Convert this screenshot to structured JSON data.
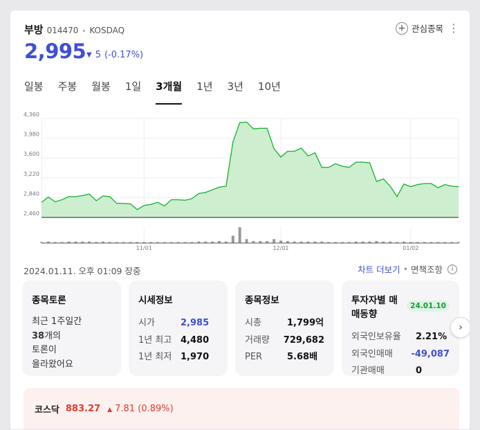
{
  "stock": {
    "name": "부방",
    "code": "014470",
    "separator": "•",
    "market": "KOSDAQ",
    "price": "2,995",
    "change_arrow": "▼",
    "change": "5",
    "change_pct": "(-0.17%)",
    "fav_label": "관심종목",
    "fav_icon": "plus-icon",
    "more_icon": "more-vertical-icon"
  },
  "tabs": [
    "일봉",
    "주봉",
    "월봉",
    "1일",
    "3개월",
    "1년",
    "3년",
    "10년"
  ],
  "active_tab": "3개월",
  "chart_data": {
    "type": "area",
    "color": "#22b43a",
    "fill": "#cdeecf",
    "ylim": [
      2460,
      4360
    ],
    "yticks": [
      "4,360",
      "3,980",
      "3,600",
      "3,220",
      "2,840",
      "2,460"
    ],
    "xticks": [
      {
        "label": "11/01",
        "index": 15
      },
      {
        "label": "12/01",
        "index": 35
      },
      {
        "label": "01/02",
        "index": 54
      }
    ],
    "values": [
      2750,
      2850,
      2760,
      2800,
      2860,
      2860,
      2880,
      2910,
      2780,
      2870,
      2860,
      2730,
      2730,
      2720,
      2610,
      2690,
      2710,
      2750,
      2680,
      2800,
      2800,
      2790,
      2820,
      2920,
      2940,
      2990,
      3040,
      3060,
      3910,
      4280,
      4290,
      4160,
      4170,
      4170,
      3780,
      3620,
      3730,
      3730,
      3790,
      3640,
      3700,
      3420,
      3420,
      3490,
      3440,
      3420,
      3520,
      3520,
      3510,
      3150,
      3200,
      3060,
      2860,
      3100,
      3050,
      3090,
      3110,
      3110,
      3030,
      3090,
      3060,
      3050
    ],
    "volume": [
      2,
      3,
      2,
      2,
      3,
      3,
      3,
      3,
      2,
      3,
      2,
      2,
      2,
      2,
      2,
      2,
      2,
      2,
      2,
      2,
      2,
      2,
      2,
      3,
      3,
      3,
      4,
      3,
      15,
      32,
      8,
      4,
      4,
      4,
      8,
      5,
      4,
      3,
      3,
      3,
      3,
      3,
      2,
      2,
      2,
      2,
      3,
      3,
      3,
      4,
      3,
      3,
      2,
      3,
      2,
      2,
      2,
      2,
      2,
      2,
      2,
      2
    ]
  },
  "status": {
    "datetime": "2024.01.11. 오후 01:09 장중",
    "chart_more": "차트 더보기",
    "separator": "•",
    "disclaimer": "면책조항",
    "info_icon": "info-icon"
  },
  "boxes": {
    "discussion": {
      "title": "종목토론",
      "lines": [
        "최근 1주일간",
        "38",
        "개의",
        "토론이",
        "올라왔어요"
      ]
    },
    "market_info": {
      "title": "시세정보",
      "rows": [
        {
          "k": "시가",
          "v": "2,985"
        },
        {
          "k": "1년 최고",
          "v": "4,480"
        },
        {
          "k": "1년 최저",
          "v": "1,970"
        }
      ]
    },
    "stock_info": {
      "title": "종목정보",
      "rows": [
        {
          "k": "시총",
          "v": "1,799억"
        },
        {
          "k": "거래량",
          "v": "729,682"
        },
        {
          "k": "PER",
          "v": "5.68배"
        }
      ]
    },
    "investor": {
      "title": "투자자별 매매동향",
      "badge": "24.01.10",
      "rows": [
        {
          "k": "외국인보유율",
          "v": "2.21%"
        },
        {
          "k": "외국인매매",
          "v": "-49,087"
        },
        {
          "k": "기관매매",
          "v": "0"
        }
      ]
    },
    "next_icon": "chevron-right-icon"
  },
  "index": {
    "name": "코스닥",
    "value": "883.27",
    "arrow": "▲",
    "change": "7.81",
    "pct": "(0.89%)"
  }
}
